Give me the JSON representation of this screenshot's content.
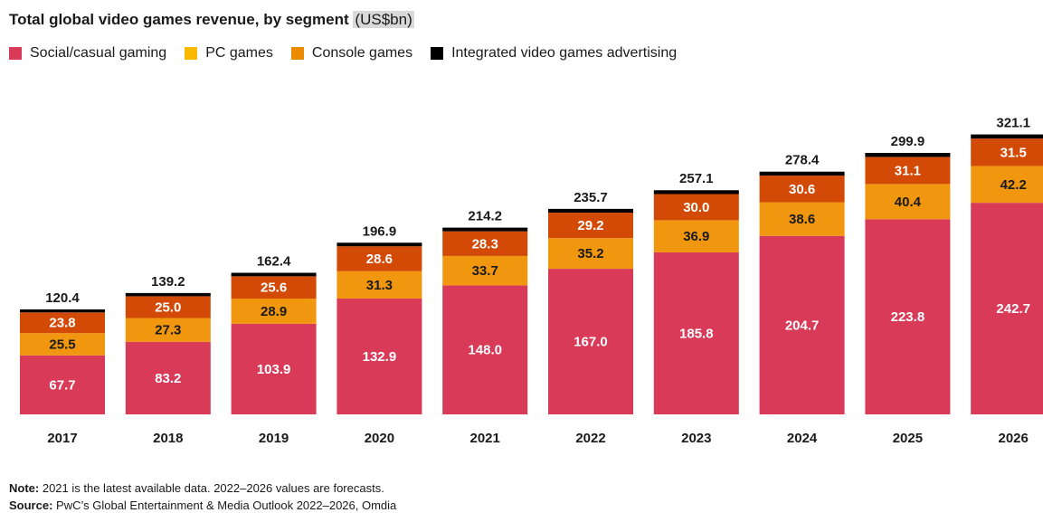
{
  "title": "Total global video games revenue, by segment",
  "unit": "US$bn",
  "note_label": "Note:",
  "note_text": "2021 is the latest available data. 2022–2026 values are forecasts.",
  "source_label": "Source:",
  "source_text": "PwC’s Global Entertainment & Media Outlook 2022–2026, Omdia",
  "chart_data": {
    "type": "bar",
    "stacked": true,
    "categories": [
      "2017",
      "2018",
      "2019",
      "2020",
      "2021",
      "2022",
      "2023",
      "2024",
      "2025",
      "2026"
    ],
    "totals": [
      120.4,
      139.2,
      162.4,
      196.9,
      214.2,
      235.7,
      257.1,
      278.4,
      299.9,
      321.1
    ],
    "total_labels": [
      "120.4",
      "139.2",
      "162.4",
      "196.9",
      "214.2",
      "235.7",
      "257.1",
      "278.4",
      "299.9",
      "321.1"
    ],
    "series": [
      {
        "name": "Social/casual gaming",
        "color": "#d93a58",
        "values": [
          67.7,
          83.2,
          103.9,
          132.9,
          148.0,
          167.0,
          185.8,
          204.7,
          223.8,
          242.7
        ],
        "labels": [
          "67.7",
          "83.2",
          "103.9",
          "132.9",
          "148.0",
          "167.0",
          "185.8",
          "204.7",
          "223.8",
          "242.7"
        ]
      },
      {
        "name": "PC games",
        "color": "#f0960f",
        "values": [
          25.5,
          27.3,
          28.9,
          31.3,
          33.7,
          35.2,
          36.9,
          38.6,
          40.4,
          42.2
        ],
        "labels": [
          "25.5",
          "27.3",
          "28.9",
          "31.3",
          "33.7",
          "35.2",
          "36.9",
          "38.6",
          "40.4",
          "42.2"
        ]
      },
      {
        "name": "Console games",
        "color": "#d24a06",
        "values": [
          23.8,
          25.0,
          25.6,
          28.6,
          28.3,
          29.2,
          30.0,
          30.6,
          31.1,
          31.5
        ],
        "labels": [
          "23.8",
          "25.0",
          "25.6",
          "28.6",
          "28.3",
          "29.2",
          "30.0",
          "30.6",
          "31.1",
          "31.5"
        ]
      },
      {
        "name": "Integrated video games advertising",
        "color": "#000000",
        "values": [
          3.4,
          3.7,
          4.0,
          4.1,
          4.2,
          4.3,
          4.4,
          4.5,
          4.6,
          4.7
        ],
        "labels": []
      }
    ],
    "legend_swatch_colors": [
      "#d93a58",
      "#fbb800",
      "#ec8a00",
      "#000000"
    ],
    "ylim": [
      0,
      330
    ],
    "grid": false,
    "legend_position": "top-left"
  }
}
